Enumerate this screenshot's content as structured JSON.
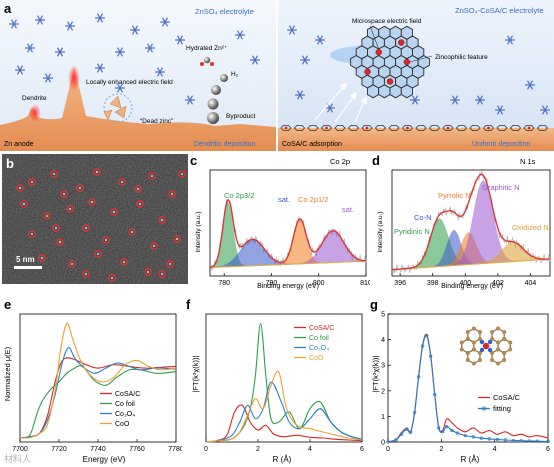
{
  "panel_a": {
    "letter": "a",
    "left_electrolyte": "ZnSO₄ electrolyte",
    "right_electrolyte": "ZnSO₄-CoSA/C electrolyte",
    "dendrite": "Dendrite",
    "enhanced_field": "Locally enhanced electric field",
    "dead_zinc": "“Dead zinc”",
    "hydrated_zn": "Hydrated Zn²⁺",
    "h2": "H₂",
    "byproduct": "Byproduct",
    "zn_anode": "Zn anode",
    "dendritic_deposition": "Dendritic deposition",
    "microspace_field": "Microspace electric field",
    "zincophilic": "Zincophilic feature",
    "cosa_adsorption": "CoSA/C adsorption",
    "uniform_deposition": "Uniform deposition"
  },
  "panel_b": {
    "letter": "b",
    "scalebar": "5 nm"
  },
  "panel_c": {
    "letter": "c",
    "corner_label": "Co 2p",
    "peak_labels": [
      "Co 2p3/2",
      "sat.",
      "Co 2p1/2",
      "sat."
    ],
    "chart_data": {
      "type": "line",
      "xlabel": "Binding energy (eV)",
      "ylabel": "Intensity (a.u.)",
      "xlim": [
        777,
        810
      ],
      "xticks": [
        780,
        790,
        800,
        810
      ],
      "components": [
        {
          "name": "Co 2p3/2",
          "center": 780.8,
          "fwhm": 2.6,
          "height": 0.6,
          "color": "#2e9e4a"
        },
        {
          "name": "sat.",
          "center": 786.0,
          "fwhm": 6.0,
          "height": 0.25,
          "color": "#3b58c9"
        },
        {
          "name": "Co 2p1/2",
          "center": 796.0,
          "fwhm": 3.2,
          "height": 0.42,
          "color": "#f07d1e"
        },
        {
          "name": "sat.",
          "center": 803.0,
          "fwhm": 5.5,
          "height": 0.3,
          "color": "#9b59d0"
        }
      ]
    }
  },
  "panel_d": {
    "letter": "d",
    "corner_label": "N 1s",
    "peak_labels": [
      "Pyridinic N",
      "Co-N",
      "Pyrrolic N",
      "Graphitic N",
      "Oxidized N"
    ],
    "chart_data": {
      "type": "line",
      "xlabel": "Binding energy (eV)",
      "ylabel": "Intensity (a.u.)",
      "xlim": [
        395.5,
        405.2
      ],
      "xticks": [
        396,
        398,
        400,
        402,
        404
      ],
      "components": [
        {
          "name": "Pyridinic N",
          "center": 398.4,
          "fwhm": 1.3,
          "height": 0.45,
          "color": "#2e9e4a"
        },
        {
          "name": "Co-N",
          "center": 399.3,
          "fwhm": 1.0,
          "height": 0.33,
          "color": "#3b58c9"
        },
        {
          "name": "Pyrrolic N",
          "center": 400.2,
          "fwhm": 1.1,
          "height": 0.3,
          "color": "#f07d1e"
        },
        {
          "name": "Graphitic N",
          "center": 401.1,
          "fwhm": 1.4,
          "height": 0.78,
          "color": "#9b59d0"
        },
        {
          "name": "Oxidized N",
          "center": 402.9,
          "fwhm": 1.6,
          "height": 0.18,
          "color": "#e0a030"
        }
      ]
    }
  },
  "panel_e": {
    "letter": "e",
    "chart_data": {
      "type": "line",
      "xlabel": "Energy (eV)",
      "ylabel": "Normalized μ(E)",
      "xlim": [
        7700,
        7780
      ],
      "xticks": [
        7700,
        7720,
        7740,
        7760,
        7780
      ],
      "series": [
        {
          "name": "CoSA/C",
          "color": "#d92727",
          "x": [
            7700,
            7705,
            7710,
            7714,
            7718,
            7721,
            7724,
            7728,
            7734,
            7740,
            7748,
            7756,
            7764,
            7772,
            7780
          ],
          "y": [
            0.05,
            0.06,
            0.1,
            0.3,
            0.7,
            0.92,
            0.98,
            0.96,
            0.9,
            0.86,
            0.9,
            0.88,
            0.86,
            0.87,
            0.88
          ]
        },
        {
          "name": "Co foil",
          "color": "#2e9e4a",
          "x": [
            7700,
            7705,
            7709,
            7712,
            7716,
            7720,
            7724,
            7728,
            7732,
            7738,
            7744,
            7750,
            7756,
            7762,
            7770,
            7780
          ],
          "y": [
            0.05,
            0.08,
            0.35,
            0.5,
            0.62,
            0.7,
            0.8,
            0.86,
            0.88,
            0.72,
            0.66,
            0.76,
            0.84,
            0.84,
            0.8,
            0.82
          ]
        },
        {
          "name": "Co₃O₄",
          "color": "#2a7fc9",
          "x": [
            7700,
            7705,
            7710,
            7714,
            7718,
            7722,
            7725,
            7728,
            7732,
            7738,
            7744,
            7750,
            7756,
            7762,
            7770,
            7780
          ],
          "y": [
            0.05,
            0.06,
            0.1,
            0.25,
            0.55,
            0.95,
            1.1,
            0.98,
            0.88,
            0.8,
            0.86,
            0.92,
            0.88,
            0.84,
            0.86,
            0.85
          ]
        },
        {
          "name": "CoO",
          "color": "#f0a030",
          "x": [
            7700,
            7705,
            7710,
            7714,
            7718,
            7721,
            7724,
            7727,
            7731,
            7736,
            7742,
            7748,
            7754,
            7760,
            7766,
            7772,
            7780
          ],
          "y": [
            0.05,
            0.05,
            0.1,
            0.2,
            0.6,
            1.1,
            1.38,
            1.2,
            0.95,
            0.78,
            0.7,
            0.75,
            0.9,
            0.95,
            0.88,
            0.84,
            0.86
          ]
        }
      ]
    }
  },
  "panel_f": {
    "letter": "f",
    "chart_data": {
      "type": "line",
      "xlabel": "R (Å)",
      "ylabel": "|FT(k³χ(k))|",
      "xlim": [
        0,
        6
      ],
      "xticks": [
        0,
        2,
        4,
        6
      ],
      "series": [
        {
          "name": "CoSA/C",
          "color": "#d92727",
          "x": [
            0,
            0.4,
            0.8,
            1.1,
            1.4,
            1.7,
            2.0,
            2.3,
            2.6,
            3.0,
            3.5,
            4.0,
            4.5,
            5.0,
            5.5,
            6.0
          ],
          "y": [
            0,
            0.02,
            0.1,
            0.45,
            0.55,
            0.3,
            0.18,
            0.25,
            0.12,
            0.08,
            0.1,
            0.07,
            0.06,
            0.04,
            0.03,
            0.02
          ]
        },
        {
          "name": "Co foil",
          "color": "#2e9e4a",
          "x": [
            0,
            0.5,
            1.0,
            1.4,
            1.7,
            1.9,
            2.1,
            2.3,
            2.5,
            2.8,
            3.2,
            3.6,
            4.0,
            4.4,
            4.8,
            5.2,
            5.6,
            6.0
          ],
          "y": [
            0,
            0.02,
            0.05,
            0.2,
            0.5,
            1.0,
            1.78,
            1.0,
            0.35,
            0.3,
            0.45,
            0.2,
            0.5,
            0.6,
            0.3,
            0.15,
            0.08,
            0.04
          ]
        },
        {
          "name": "Co₃O₄",
          "color": "#2a7fc9",
          "x": [
            0,
            0.5,
            1.0,
            1.3,
            1.6,
            1.9,
            2.2,
            2.5,
            2.9,
            3.2,
            3.6,
            4.0,
            4.4,
            4.8,
            5.2,
            5.6,
            6.0
          ],
          "y": [
            0,
            0.02,
            0.1,
            0.3,
            0.55,
            0.35,
            0.5,
            0.9,
            0.6,
            0.3,
            0.2,
            0.35,
            0.5,
            0.3,
            0.15,
            0.08,
            0.04
          ]
        },
        {
          "name": "CoO",
          "color": "#f0a030",
          "x": [
            0,
            0.5,
            1.0,
            1.3,
            1.6,
            1.9,
            2.2,
            2.5,
            2.8,
            3.1,
            3.5,
            4.0,
            4.5,
            5.0,
            5.5,
            6.0
          ],
          "y": [
            0,
            0.02,
            0.05,
            0.15,
            0.4,
            0.65,
            0.5,
            0.85,
            1.05,
            0.5,
            0.25,
            0.2,
            0.15,
            0.1,
            0.06,
            0.03
          ]
        }
      ]
    }
  },
  "panel_g": {
    "letter": "g",
    "chart_data": {
      "type": "line",
      "xlabel": "R (Å)",
      "ylabel": "|FT(k³χ(k))|",
      "xlim": [
        0,
        6
      ],
      "ylim": [
        0,
        5
      ],
      "xticks": [
        0,
        2,
        4,
        6
      ],
      "yticks": [
        0,
        1,
        2,
        3,
        4,
        5
      ],
      "series": [
        {
          "name": "CoSA/C",
          "color": "#d92727",
          "x": [
            0,
            0.3,
            0.5,
            0.7,
            0.85,
            1.0,
            1.15,
            1.3,
            1.45,
            1.6,
            1.75,
            1.9,
            2.05,
            2.2,
            2.4,
            2.6,
            2.9,
            3.2,
            3.5,
            3.8,
            4.1,
            4.4,
            4.7,
            5.0,
            5.3,
            5.6,
            6.0
          ],
          "y": [
            0,
            0.1,
            0.35,
            0.55,
            0.4,
            1.2,
            2.6,
            3.8,
            4.2,
            3.4,
            1.9,
            0.6,
            0.45,
            0.9,
            0.75,
            0.55,
            0.4,
            0.55,
            0.35,
            0.45,
            0.3,
            0.4,
            0.25,
            0.3,
            0.2,
            0.25,
            0.15
          ]
        },
        {
          "name": "fitting",
          "color": "#2a7fc9",
          "x": [
            0,
            0.3,
            0.5,
            0.7,
            0.85,
            1.0,
            1.15,
            1.3,
            1.45,
            1.6,
            1.75,
            1.9,
            2.05,
            2.2,
            2.4,
            2.6,
            2.9,
            3.2,
            3.5,
            3.8,
            4.1,
            4.4,
            4.7,
            5.0,
            5.3,
            5.6,
            6.0
          ],
          "y": [
            0,
            0.08,
            0.3,
            0.5,
            0.38,
            1.15,
            2.55,
            3.75,
            4.15,
            3.35,
            1.85,
            0.55,
            0.4,
            0.6,
            0.45,
            0.35,
            0.25,
            0.2,
            0.15,
            0.12,
            0.1,
            0.08,
            0.06,
            0.05,
            0.04,
            0.03,
            0.02
          ]
        }
      ]
    }
  },
  "watermark": "材料人"
}
